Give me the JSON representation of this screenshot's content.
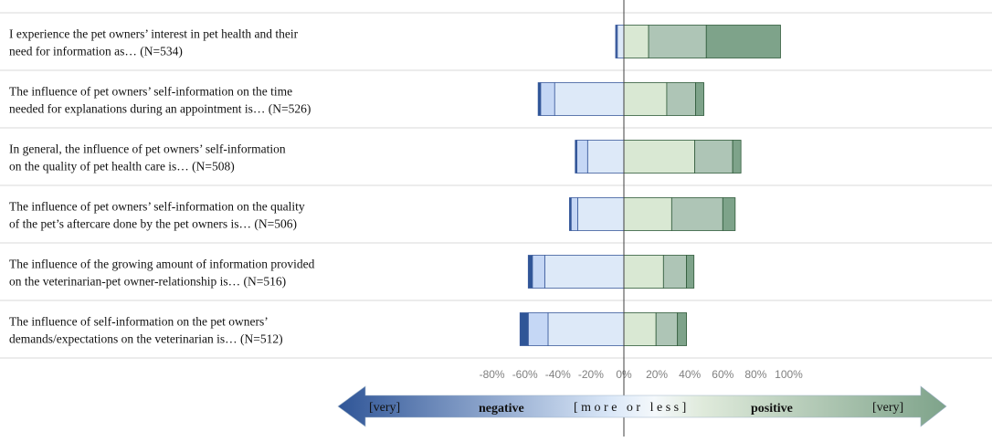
{
  "chart_data": {
    "type": "bar",
    "subtype": "diverging-stacked-horizontal",
    "x_axis": {
      "range": [
        -80,
        100
      ],
      "tick_labels": [
        "-80%",
        "-60%",
        "-40%",
        "-20%",
        "0%",
        "20%",
        "40%",
        "60%",
        "80%",
        "100%"
      ]
    },
    "gridlines": "horizontal separators between rows",
    "categories": [
      {
        "line1": "I experience the pet owners’ interest in pet health and their",
        "line2": "need for information as… (N=534)"
      },
      {
        "line1": "The influence of pet owners’ self-information on the time",
        "line2": "needed for explanations during an appointment is… (N=526)"
      },
      {
        "line1": "In general, the influence of pet owners’ self-information",
        "line2": "on the quality of pet health care is… (N=508)"
      },
      {
        "line1": "The influence of pet owners’ self-information on the quality",
        "line2": "of the pet’s aftercare done by the pet owners is… (N=506)"
      },
      {
        "line1": "The influence of the growing amount of information provided",
        "line2": "on the veterinarian-pet owner-relationship is… (N=516)"
      },
      {
        "line1": "The influence of self-information on the pet owners’",
        "line2": "demands/expectations on the veterinarian is… (N=512)"
      }
    ],
    "series": [
      {
        "name": "very negative",
        "color": "#2f5597",
        "values": [
          0.5,
          1.5,
          1,
          1,
          2.5,
          5
        ]
      },
      {
        "name": "negative",
        "color": "#c5d7f5",
        "values": [
          0.5,
          8.5,
          6.5,
          4,
          7.5,
          12
        ]
      },
      {
        "name": "negative (more or less)",
        "color": "#dde9f8",
        "values": [
          4,
          42,
          22,
          28,
          48,
          46
        ]
      },
      {
        "name": "positive (more or less)",
        "color": "#d9e8d3",
        "values": [
          15,
          26,
          43,
          29,
          24,
          19.5
        ]
      },
      {
        "name": "positive",
        "color": "#aec5b6",
        "values": [
          35,
          17.5,
          23,
          31,
          14,
          13
        ]
      },
      {
        "name": "very positive",
        "color": "#7ea38a",
        "values": [
          45,
          5,
          5,
          7.5,
          4.5,
          5.5
        ]
      }
    ],
    "legend": {
      "very_left": "[very]",
      "negative": "negative",
      "middle": "[ m o r e   o r   l e s s ]",
      "positive": "positive",
      "very_right": "[very]"
    }
  }
}
